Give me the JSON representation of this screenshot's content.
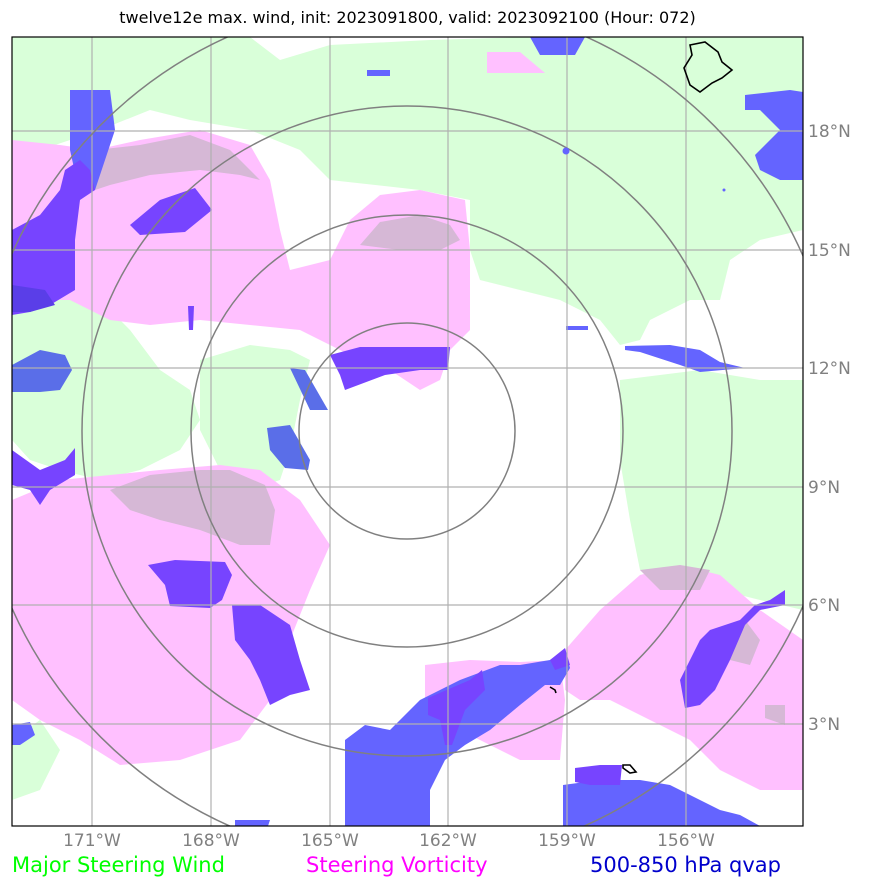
{
  "title": "twelve12e max. wind, init: 2023091800, valid: 2023092100 (Hour: 072)",
  "lon_ticks": [
    "171°W",
    "168°W",
    "165°W",
    "162°W",
    "159°W",
    "156°W"
  ],
  "lat_ticks": [
    "18°N",
    "15°N",
    "12°N",
    "9°N",
    "6°N",
    "3°N"
  ],
  "legend": [
    {
      "label": "Major Steering Wind",
      "color": "#00ff00"
    },
    {
      "label": "Steering Vorticity",
      "color": "#ff00ff"
    },
    {
      "label": "500-850 hPa qvap",
      "color": "#0000cc"
    }
  ],
  "colors": {
    "steering_wind_fill": "#d9ffd9",
    "vorticity_fill": "#ffc0ff",
    "qvap_fill": "#6464ff",
    "overlap_fill": "#d6b8d6",
    "grid": "#b0b0b0",
    "range_rings": "#808080",
    "coastline": "#000000"
  }
}
